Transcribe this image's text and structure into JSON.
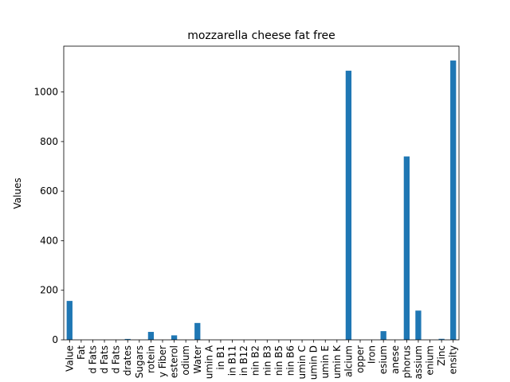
{
  "chart_data": {
    "type": "bar",
    "title": "mozzarella cheese fat free",
    "xlabel": "",
    "ylabel": "Values",
    "ylim": [
      0,
      1185
    ],
    "yticks": [
      0,
      200,
      400,
      600,
      800,
      1000
    ],
    "grid": false,
    "legend": "none",
    "bar_color": "#1f77b4",
    "categories": [
      "Value",
      "Fat",
      "d Fats",
      "d Fats",
      "d Fats",
      "drates",
      "Sugars",
      "rotein",
      "y Fiber",
      "esterol",
      "odium",
      "Water",
      "umin A",
      "in B1",
      "in B11",
      "in B12",
      "nin B2",
      "nin B3",
      "nin B5",
      "nin B6",
      "umin C",
      "umin D",
      "umin E",
      "umin K",
      "alcium",
      "opper",
      "Iron",
      "esium",
      "anese",
      "phorus",
      "assium",
      "enium",
      "Zinc",
      "ensity"
    ],
    "values": [
      157,
      0,
      0,
      0,
      0,
      3.5,
      0,
      32,
      0,
      18,
      0,
      68,
      0,
      0,
      0,
      0,
      0,
      0,
      0,
      0,
      0,
      0,
      0,
      0,
      1086,
      0,
      0,
      35,
      0,
      740,
      118,
      0,
      4,
      1127
    ]
  }
}
